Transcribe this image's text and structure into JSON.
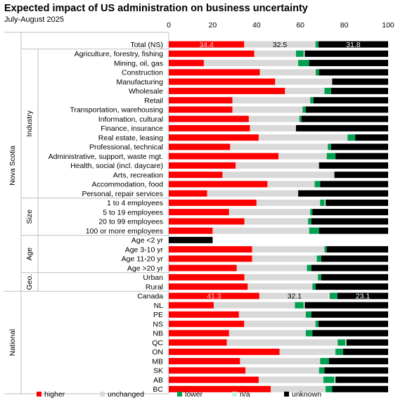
{
  "title": "Expected impact of US administration on business uncertainty",
  "subtitle": "July-August 2025",
  "chart_data": {
    "type": "bar",
    "orientation": "horizontal",
    "stacked": true,
    "xlim": [
      0,
      100
    ],
    "x_ticks": [
      "0",
      "20",
      "40",
      "60",
      "80",
      "100"
    ],
    "series": [
      {
        "name": "higher",
        "color": "#ff0000"
      },
      {
        "name": "unchanged",
        "color": "#d9d9d9"
      },
      {
        "name": "lower",
        "color": "#00a050"
      },
      {
        "name": "n/a",
        "color": "#c8f0d8"
      },
      {
        "name": "unknown",
        "color": "#000000"
      }
    ],
    "groups": [
      {
        "outer": "Nova Scotia",
        "inner": "",
        "rows": [
          {
            "label": "Total (NS)",
            "values": [
              34.4,
              32.5,
              1.2,
              0.1,
              31.8
            ],
            "data_labels": [
              "34.4",
              "32.5",
              "",
              "",
              "31.8"
            ]
          }
        ]
      },
      {
        "outer": "Nova Scotia",
        "inner": "Industry",
        "rows": [
          {
            "label": "Agriculture, forestry, fishing",
            "values": [
              39,
              19,
              3.5,
              0.5,
              38
            ]
          },
          {
            "label": "Mining, oil, gas",
            "values": [
              16,
              43,
              5,
              0,
              36
            ]
          },
          {
            "label": "Construction",
            "values": [
              41.5,
              25.5,
              1.5,
              0,
              31.5
            ]
          },
          {
            "label": "Manufacturing",
            "values": [
              48.5,
              26,
              0,
              0,
              25.5
            ]
          },
          {
            "label": "Wholesale",
            "values": [
              53,
              18,
              3,
              0,
              26
            ]
          },
          {
            "label": "Retail",
            "values": [
              29,
              35.5,
              1.5,
              0,
              34
            ]
          },
          {
            "label": "Transportation, warehousing",
            "values": [
              29,
              32,
              1.5,
              0,
              37.5
            ]
          },
          {
            "label": "Information, cultural",
            "values": [
              36.5,
              23,
              1,
              0,
              39.5
            ]
          },
          {
            "label": "Finance, insurance",
            "values": [
              37,
              21,
              0,
              0,
              42
            ]
          },
          {
            "label": "Real estate, leasing",
            "values": [
              41,
              40.5,
              3.5,
              0,
              15
            ]
          },
          {
            "label": "Professional, technical",
            "values": [
              28,
              44.5,
              1.5,
              0,
              26
            ]
          },
          {
            "label": "Administrative, support, waste mgt.",
            "values": [
              50,
              22,
              4,
              0,
              24
            ]
          },
          {
            "label": "Health, social (incl. daycare)",
            "values": [
              30.5,
              38,
              0,
              0,
              31.5
            ]
          },
          {
            "label": "Arts, recreation",
            "values": [
              24.5,
              51,
              0,
              0,
              24.5
            ]
          },
          {
            "label": "Accommodation, food",
            "values": [
              45,
              21.5,
              2.5,
              0,
              31
            ]
          },
          {
            "label": "Personal, repair services",
            "values": [
              17.5,
              41.5,
              0,
              0,
              41
            ]
          }
        ]
      },
      {
        "outer": "Nova Scotia",
        "inner": "Size",
        "rows": [
          {
            "label": "1 to 4 employees",
            "values": [
              40,
              29,
              2,
              0.5,
              28.5
            ]
          },
          {
            "label": "5 to 19 employees",
            "values": [
              27.5,
              37,
              1,
              0,
              34.5
            ]
          },
          {
            "label": "20 to 99 employees",
            "values": [
              34.5,
              29,
              1.5,
              0,
              35
            ]
          },
          {
            "label": "100 or more employees",
            "values": [
              20,
              44,
              4.5,
              0,
              31.5
            ]
          }
        ]
      },
      {
        "outer": "Nova Scotia",
        "inner": "Age",
        "rows": [
          {
            "label": "Age <2 yr",
            "values": [
              0,
              0,
              0,
              0,
              20
            ]
          },
          {
            "label": "Age 3-10 yr",
            "values": [
              38,
              33,
              1,
              0,
              28
            ]
          },
          {
            "label": "Age 11-20 yr",
            "values": [
              38,
              29.5,
              2,
              0,
              30.5
            ]
          },
          {
            "label": "Age >20 yr",
            "values": [
              31,
              32,
              2,
              0,
              35
            ]
          }
        ]
      },
      {
        "outer": "Nova Scotia",
        "inner": "Geo.",
        "rows": [
          {
            "label": "Urban",
            "values": [
              34.5,
              33.5,
              1.5,
              0,
              30.5
            ]
          },
          {
            "label": "Rural",
            "values": [
              36,
              29.5,
              1.5,
              0,
              33
            ]
          }
        ]
      },
      {
        "outer": "National",
        "inner": "",
        "rows": [
          {
            "label": "Canada",
            "values": [
              41.3,
              32.1,
              3.5,
              0,
              23.1
            ],
            "data_labels": [
              "41.3",
              "32.1",
              "",
              "",
              "23.1"
            ]
          },
          {
            "label": "NL",
            "values": [
              20.5,
              37,
              4,
              0.5,
              38
            ]
          },
          {
            "label": "PE",
            "values": [
              32,
              30.5,
              2.5,
              0,
              35
            ]
          },
          {
            "label": "NS",
            "values": [
              34.4,
              32.5,
              1.2,
              0.1,
              31.8
            ]
          },
          {
            "label": "NB",
            "values": [
              27.5,
              35,
              3,
              0,
              34.5
            ]
          },
          {
            "label": "QC",
            "values": [
              26.5,
              50.5,
              3.5,
              0.5,
              19
            ]
          },
          {
            "label": "ON",
            "values": [
              50.5,
              25.5,
              3.5,
              0,
              20.5
            ]
          },
          {
            "label": "MB",
            "values": [
              32.5,
              36.5,
              4,
              0,
              27
            ]
          },
          {
            "label": "SK",
            "values": [
              35,
              33.5,
              2.5,
              0,
              29
            ]
          },
          {
            "label": "AB",
            "values": [
              41,
              29.5,
              5,
              0.5,
              24
            ]
          },
          {
            "label": "BC",
            "values": [
              46.5,
              25,
              3,
              0,
              25.5
            ]
          }
        ]
      }
    ],
    "legend_position": "bottom"
  }
}
